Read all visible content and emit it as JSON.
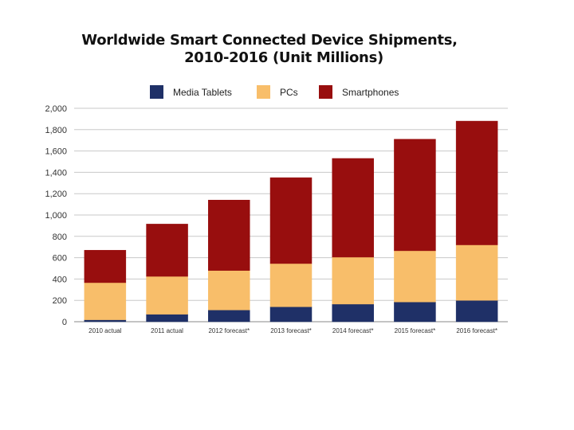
{
  "chart_data": {
    "type": "bar",
    "stacked": true,
    "title_line1": "Worldwide Smart Connected Device Shipments,",
    "title_line2": "2010-2016 (Unit Millions)",
    "xlabel": "",
    "ylabel": "",
    "ylim": [
      0,
      2000
    ],
    "yticks": [
      0,
      200,
      400,
      600,
      800,
      1000,
      1200,
      1400,
      1600,
      1800,
      2000
    ],
    "ytick_labels": [
      "0",
      "200",
      "400",
      "600",
      "800",
      "1,000",
      "1,200",
      "1,400",
      "1,600",
      "1,800",
      "2,000"
    ],
    "grid": true,
    "legend_position": "top",
    "categories": [
      "2010 actual",
      "2011 actual",
      "2012 forecast*",
      "2013 forecast*",
      "2014 forecast*",
      "2015 forecast*",
      "2016 forecast*"
    ],
    "series": [
      {
        "name": "Media Tablets",
        "color": "#1f3067",
        "values": [
          18,
          70,
          110,
          140,
          165,
          185,
          200
        ]
      },
      {
        "name": "PCs",
        "color": "#f8be6a",
        "values": [
          348,
          355,
          370,
          405,
          440,
          480,
          520
        ]
      },
      {
        "name": "Smartphones",
        "color": "#980e0e",
        "values": [
          304,
          490,
          660,
          805,
          925,
          1045,
          1160
        ]
      }
    ]
  }
}
